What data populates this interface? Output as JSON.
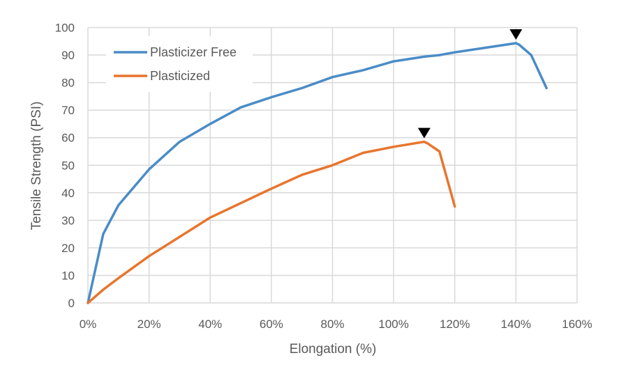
{
  "chart_data": {
    "type": "line",
    "title": "",
    "xlabel": "Elongation (%)",
    "ylabel": "Tensile Strength (PSI)",
    "xlim": [
      0,
      160
    ],
    "ylim": [
      0,
      100
    ],
    "x_ticks": [
      0,
      20,
      40,
      60,
      80,
      100,
      120,
      140,
      160
    ],
    "x_tick_labels": [
      "0%",
      "20%",
      "40%",
      "60%",
      "80%",
      "100%",
      "120%",
      "140%",
      "160%"
    ],
    "y_ticks": [
      0,
      10,
      20,
      30,
      40,
      50,
      60,
      70,
      80,
      90,
      100
    ],
    "y_tick_labels": [
      "0",
      "10",
      "20",
      "30",
      "40",
      "50",
      "60",
      "70",
      "80",
      "90",
      "100"
    ],
    "grid": true,
    "legend_position": "upper-left-inside",
    "series": [
      {
        "name": "Plasticizer Free",
        "color": "#4a8cc7",
        "x": [
          0,
          5,
          10,
          20,
          30,
          40,
          50,
          60,
          70,
          80,
          90,
          100,
          110,
          115,
          120,
          140,
          141,
          145,
          150
        ],
        "y": [
          0,
          25,
          35.5,
          48.5,
          58.5,
          65,
          71,
          74.7,
          78,
          82,
          84.5,
          87.7,
          89.4,
          90,
          91,
          94.3,
          93.8,
          90,
          78
        ]
      },
      {
        "name": "Plasticized",
        "color": "#e8752d",
        "x": [
          0,
          5,
          10,
          20,
          40,
          60,
          70,
          80,
          90,
          100,
          110,
          111,
          115,
          120
        ],
        "y": [
          0,
          4.8,
          9,
          17,
          31,
          41.5,
          46.5,
          50,
          54.5,
          56.7,
          58.5,
          58,
          55,
          35
        ]
      }
    ],
    "annotations": [
      {
        "type": "marker",
        "glyph": "down-triangle",
        "color": "#000000",
        "x": 140,
        "y": 94.3,
        "note": "peak of Plasticizer Free"
      },
      {
        "type": "marker",
        "glyph": "down-triangle",
        "color": "#000000",
        "x": 110,
        "y": 58.5,
        "note": "peak of Plasticized"
      }
    ]
  },
  "legend": {
    "items": [
      {
        "label": "Plasticizer Free",
        "color": "#4a8cc7"
      },
      {
        "label": "Plasticized",
        "color": "#e8752d"
      }
    ]
  }
}
